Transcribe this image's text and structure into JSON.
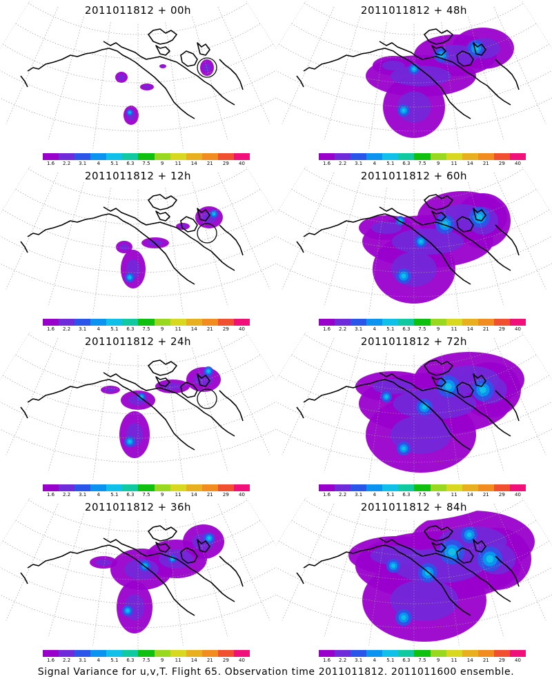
{
  "caption": "Signal Variance for u,v,T. Flight 65. Observation time 2011011812. 2011011600 ensemble.",
  "panels": [
    {
      "title": "2011011812 + 00h",
      "level": 0,
      "circle": true
    },
    {
      "title": "2011011812 + 48h",
      "level": 4,
      "circle": false
    },
    {
      "title": "2011011812 + 12h",
      "level": 1,
      "circle": true
    },
    {
      "title": "2011011812 + 60h",
      "level": 5,
      "circle": false
    },
    {
      "title": "2011011812 + 24h",
      "level": 2,
      "circle": true
    },
    {
      "title": "2011011812 + 72h",
      "level": 6,
      "circle": false
    },
    {
      "title": "2011011812 + 36h",
      "level": 3,
      "circle": false
    },
    {
      "title": "2011011812 + 84h",
      "level": 7,
      "circle": false
    }
  ],
  "colorbar": {
    "labels": [
      "1.6",
      "2.2",
      "3.1",
      "4",
      "5.1",
      "6.3",
      "7.5",
      "9",
      "11",
      "14",
      "21",
      "29",
      "40"
    ],
    "colors": [
      "#9a00cc",
      "#6e2bd9",
      "#2a55e8",
      "#0a94f0",
      "#10c0e8",
      "#12c8a0",
      "#10c010",
      "#98d820",
      "#d8d820",
      "#e8b020",
      "#f08c20",
      "#f05030",
      "#f0107a"
    ]
  }
}
